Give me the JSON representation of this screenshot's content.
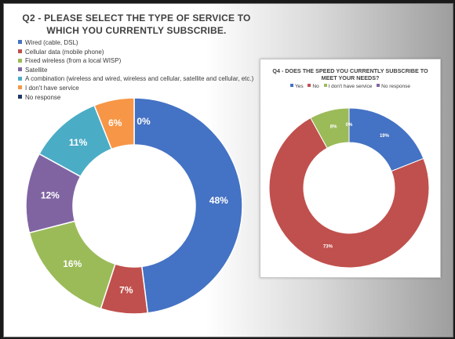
{
  "chart_data": [
    {
      "type": "pie",
      "title": "Q2 - PLEASE SELECT THE TYPE OF SERVICE TO WHICH YOU CURRENTLY SUBSCRIBE.",
      "legend_placement": "top-left",
      "slices": [
        {
          "label": "Wired (cable, DSL)",
          "value": 48,
          "display": "48%",
          "color": "#4472c4"
        },
        {
          "label": "Cellular data (mobile phone)",
          "value": 7,
          "display": "7%",
          "color": "#c0504d"
        },
        {
          "label": "Fixed wireless (from a local WISP)",
          "value": 16,
          "display": "16%",
          "color": "#9bbb59"
        },
        {
          "label": "Satellite",
          "value": 12,
          "display": "12%",
          "color": "#8064a2"
        },
        {
          "label": "A combination (wireless and wired, wireless and cellular, satellite and cellular, etc.)",
          "value": 11,
          "display": "11%",
          "color": "#4bacc6"
        },
        {
          "label": "I don't have service",
          "value": 6,
          "display": "6%",
          "color": "#f79646"
        },
        {
          "label": "No response",
          "value": 0,
          "display": "0%",
          "color": "#1f3864"
        }
      ]
    },
    {
      "type": "pie",
      "title": "Q4 - DOES THE SPEED YOU CURRENTLY SUBSCRIBE TO MEET YOUR NEEDS?",
      "legend_placement": "top",
      "slices": [
        {
          "label": "Yes",
          "value": 19,
          "display": "19%",
          "color": "#4472c4"
        },
        {
          "label": "No",
          "value": 73,
          "display": "73%",
          "color": "#c0504d"
        },
        {
          "label": "I don't have service",
          "value": 8,
          "display": "8%",
          "color": "#9bbb59"
        },
        {
          "label": "No response",
          "value": 0,
          "display": "0%",
          "color": "#8064a2"
        }
      ]
    }
  ]
}
